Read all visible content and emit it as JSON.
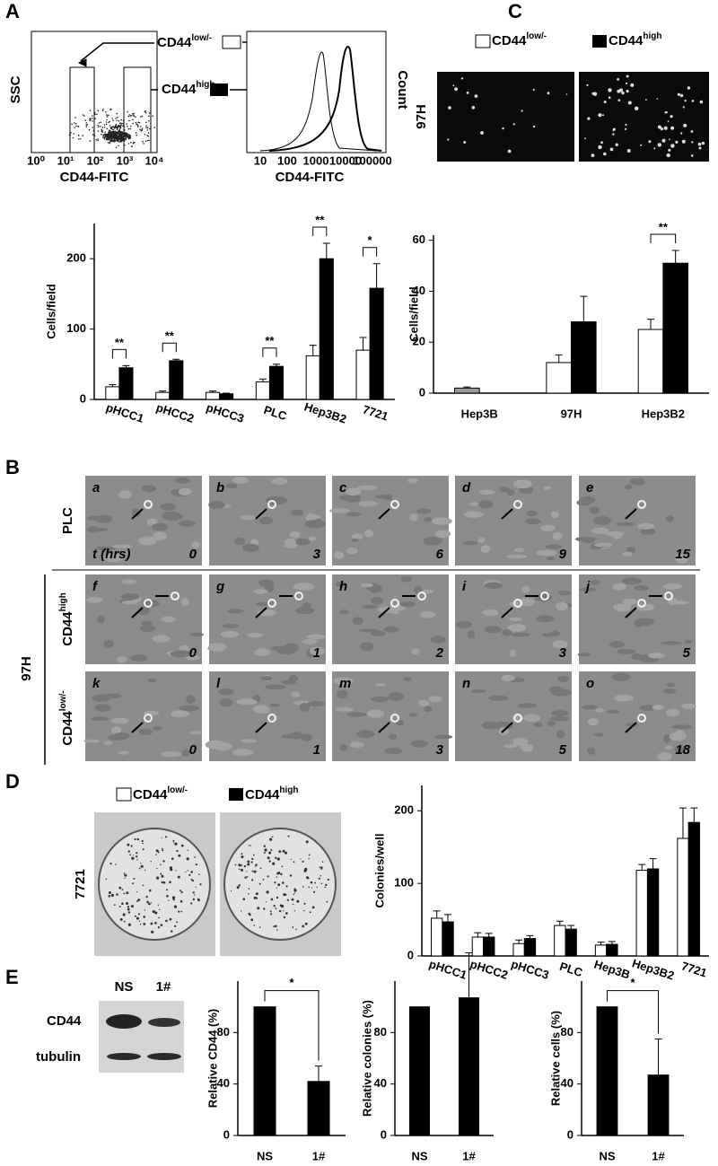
{
  "panel_labels": [
    "A",
    "B",
    "C",
    "D",
    "E"
  ],
  "panel_a": {
    "legend": [
      {
        "label": "CD44",
        "sup": "low/-"
      },
      {
        "label": "CD44",
        "sup": "high"
      }
    ],
    "flow": {
      "y_label": "SSC",
      "x_label": "CD44-FITC",
      "x_ticks": [
        "10⁰",
        "10¹",
        "10²",
        "10³",
        "10⁴"
      ]
    },
    "histogram": {
      "y_label": "Count",
      "x_label": "CD44-FITC",
      "x_ticks": [
        "10",
        "100",
        "1000",
        "10000",
        "100000"
      ]
    }
  },
  "panel_b": {
    "group_label": "97H",
    "time_label": "t (hrs)",
    "rows": [
      {
        "label": "PLC",
        "frames": [
          {
            "letter": "a",
            "time": 0
          },
          {
            "letter": "b",
            "time": 3
          },
          {
            "letter": "c",
            "time": 6
          },
          {
            "letter": "d",
            "time": 9
          },
          {
            "letter": "e",
            "time": 15
          }
        ]
      },
      {
        "label": "CD44",
        "sup": "high",
        "frames": [
          {
            "letter": "f",
            "time": 0
          },
          {
            "letter": "g",
            "time": 1
          },
          {
            "letter": "h",
            "time": 2
          },
          {
            "letter": "i",
            "time": 3
          },
          {
            "letter": "j",
            "time": 5
          }
        ]
      },
      {
        "label": "CD44",
        "sup": "low/-",
        "frames": [
          {
            "letter": "k",
            "time": 0
          },
          {
            "letter": "l",
            "time": 1
          },
          {
            "letter": "m",
            "time": 3
          },
          {
            "letter": "n",
            "time": 5
          },
          {
            "letter": "o",
            "time": 18
          }
        ]
      }
    ]
  },
  "panel_c": {
    "legend": [
      {
        "label": "CD44",
        "sup": "low/-"
      },
      {
        "label": "CD44",
        "sup": "high"
      }
    ],
    "row_label": "97H"
  },
  "panel_d": {
    "legend": [
      {
        "label": "CD44",
        "sup": "low/-"
      },
      {
        "label": "CD44",
        "sup": "high"
      }
    ],
    "row_label": "7721"
  },
  "panel_e": {
    "lanes": [
      "NS",
      "1#"
    ],
    "bands": [
      "CD44",
      "tubulin"
    ]
  },
  "chart_data": [
    {
      "type": "bar",
      "y_label": "Cells/field",
      "categories": [
        "pHCC1",
        "pHCC2",
        "pHCC3",
        "PLC",
        "Hep3B2",
        "7721"
      ],
      "series": [
        {
          "color": "#ffffff",
          "values": [
            18,
            10,
            10,
            25,
            62,
            70
          ],
          "errors": [
            3,
            2,
            2,
            4,
            15,
            18
          ]
        },
        {
          "color": "#000000",
          "values": [
            45,
            55,
            8,
            47,
            200,
            158
          ],
          "errors": [
            3,
            2,
            1,
            3,
            22,
            35
          ]
        }
      ],
      "annotations": [
        "**",
        "**",
        null,
        "**",
        "**",
        "*"
      ],
      "ylim": [
        0,
        250
      ],
      "yticks": [
        0,
        100,
        200
      ]
    },
    {
      "type": "bar",
      "y_label": "Cells/field",
      "categories": [
        "Hep3B",
        "97H",
        "Hep3B2"
      ],
      "series": [
        {
          "color": "#ffffff",
          "values": [
            2,
            12,
            25
          ],
          "errors": [
            0.4,
            3,
            4
          ]
        },
        {
          "color": "#000000",
          "values": [
            null,
            28,
            51
          ],
          "errors": [
            null,
            10,
            5
          ]
        }
      ],
      "annotations": [
        null,
        null,
        "**"
      ],
      "ylim": [
        0,
        62
      ],
      "yticks": [
        0,
        20,
        40,
        60
      ]
    },
    {
      "type": "bar",
      "y_label": "Colonies/well",
      "categories": [
        "pHCC1",
        "pHCC2",
        "pHCC3",
        "PLC",
        "Hep3B",
        "Hep3B2",
        "7721"
      ],
      "series": [
        {
          "color": "#ffffff",
          "values": [
            52,
            26,
            17,
            42,
            15,
            118,
            162
          ],
          "errors": [
            10,
            6,
            5,
            6,
            4,
            8,
            42
          ]
        },
        {
          "color": "#000000",
          "values": [
            47,
            26,
            24,
            37,
            16,
            120,
            184
          ],
          "errors": [
            10,
            5,
            4,
            5,
            4,
            14,
            20
          ]
        }
      ],
      "ylim": [
        0,
        235
      ],
      "yticks": [
        0,
        100,
        200
      ]
    },
    {
      "type": "bar",
      "y_label": "Relative CD44 (%)",
      "categories": [
        "NS",
        "1#"
      ],
      "series": [
        {
          "color": "#000000",
          "values": [
            100,
            42
          ],
          "errors": [
            0,
            12
          ]
        }
      ],
      "significance": "*",
      "ylim": [
        0,
        120
      ],
      "yticks": [
        0,
        40,
        80
      ]
    },
    {
      "type": "bar",
      "y_label": "Relative colonies (%)",
      "categories": [
        "NS",
        "1#"
      ],
      "series": [
        {
          "color": "#000000",
          "values": [
            100,
            107
          ],
          "errors": [
            0,
            35
          ]
        }
      ],
      "ylim": [
        0,
        120
      ],
      "yticks": [
        0,
        40,
        80
      ]
    },
    {
      "type": "bar",
      "y_label": "Relative cells (%)",
      "categories": [
        "NS",
        "1#"
      ],
      "series": [
        {
          "color": "#000000",
          "values": [
            100,
            47
          ],
          "errors": [
            0,
            28
          ]
        }
      ],
      "significance": "*",
      "ylim": [
        0,
        120
      ],
      "yticks": [
        0,
        40,
        80
      ]
    }
  ]
}
